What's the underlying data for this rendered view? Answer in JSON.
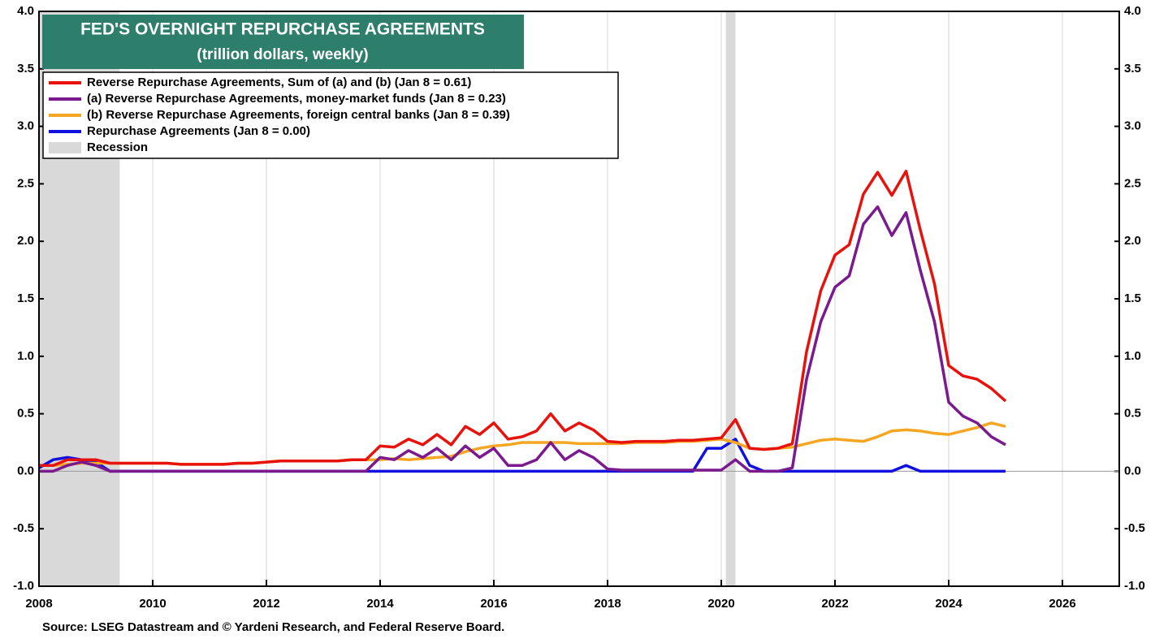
{
  "chart_data": {
    "type": "line",
    "title": "FED'S OVERNIGHT REPURCHASE AGREEMENTS",
    "subtitle": "(trillion dollars, weekly)",
    "source": "Source: LSEG Datastream and © Yardeni Research, and Federal Reserve Board.",
    "recession_label": "Recession",
    "recession_color": "#d9d9d9",
    "recessions": [
      [
        2007.92,
        2009.42
      ],
      [
        2020.08,
        2020.25
      ]
    ],
    "x": [
      2008,
      2008.25,
      2008.5,
      2008.75,
      2009,
      2009.25,
      2009.5,
      2009.75,
      2010,
      2010.25,
      2010.5,
      2010.75,
      2011,
      2011.25,
      2011.5,
      2011.75,
      2012,
      2012.25,
      2012.5,
      2012.75,
      2013,
      2013.25,
      2013.5,
      2013.75,
      2014,
      2014.25,
      2014.5,
      2014.75,
      2015,
      2015.25,
      2015.5,
      2015.75,
      2016,
      2016.25,
      2016.5,
      2016.75,
      2017,
      2017.25,
      2017.5,
      2017.75,
      2018,
      2018.25,
      2018.5,
      2018.75,
      2019,
      2019.25,
      2019.5,
      2019.75,
      2020,
      2020.25,
      2020.5,
      2020.75,
      2021,
      2021.25,
      2021.5,
      2021.75,
      2022,
      2022.25,
      2022.5,
      2022.75,
      2023,
      2023.25,
      2023.5,
      2023.75,
      2024,
      2024.25,
      2024.5,
      2024.75,
      2025
    ],
    "series": [
      {
        "name": "Reverse Repurchase Agreements, Sum of (a) and (b)  (Jan 8 = 0.61)",
        "color": "#e8120c",
        "values": [
          0.05,
          0.05,
          0.1,
          0.1,
          0.1,
          0.07,
          0.07,
          0.07,
          0.07,
          0.07,
          0.06,
          0.06,
          0.06,
          0.06,
          0.07,
          0.07,
          0.08,
          0.09,
          0.09,
          0.09,
          0.09,
          0.09,
          0.1,
          0.1,
          0.22,
          0.21,
          0.28,
          0.23,
          0.32,
          0.23,
          0.39,
          0.32,
          0.42,
          0.28,
          0.3,
          0.35,
          0.5,
          0.35,
          0.42,
          0.36,
          0.26,
          0.25,
          0.26,
          0.26,
          0.26,
          0.27,
          0.27,
          0.28,
          0.29,
          0.45,
          0.2,
          0.19,
          0.2,
          0.24,
          1.04,
          1.57,
          1.88,
          1.97,
          2.41,
          2.6,
          2.4,
          2.61,
          2.1,
          1.63,
          0.92,
          0.83,
          0.8,
          0.72,
          0.61
        ]
      },
      {
        "name": "(a) Reverse Repurchase Agreements, money-market funds (Jan 8 = 0.23)",
        "color": "#7b1a8e",
        "values": [
          0,
          0,
          0.05,
          0.08,
          0.05,
          0,
          0,
          0,
          0,
          0,
          0,
          0,
          0,
          0,
          0,
          0,
          0,
          0,
          0,
          0,
          0,
          0,
          0,
          0,
          0.12,
          0.1,
          0.18,
          0.12,
          0.2,
          0.1,
          0.22,
          0.12,
          0.2,
          0.05,
          0.05,
          0.1,
          0.25,
          0.1,
          0.18,
          0.12,
          0.02,
          0.01,
          0.01,
          0.01,
          0.01,
          0.01,
          0.01,
          0.01,
          0.01,
          0.1,
          0,
          0,
          0,
          0.03,
          0.8,
          1.3,
          1.6,
          1.7,
          2.15,
          2.3,
          2.05,
          2.25,
          1.75,
          1.3,
          0.6,
          0.48,
          0.42,
          0.3,
          0.23
        ]
      },
      {
        "name": "(b) Reverse Repurchase Agreements, foreign central banks (Jan 8 = 0.39)",
        "color": "#f5a623",
        "values": [
          0.05,
          0.05,
          0.06,
          0.07,
          0.07,
          0.07,
          0.07,
          0.07,
          0.07,
          0.07,
          0.06,
          0.06,
          0.06,
          0.06,
          0.07,
          0.07,
          0.08,
          0.09,
          0.09,
          0.09,
          0.09,
          0.09,
          0.1,
          0.1,
          0.1,
          0.11,
          0.1,
          0.11,
          0.12,
          0.13,
          0.17,
          0.2,
          0.22,
          0.23,
          0.25,
          0.25,
          0.25,
          0.25,
          0.24,
          0.24,
          0.24,
          0.24,
          0.25,
          0.25,
          0.25,
          0.26,
          0.26,
          0.27,
          0.28,
          0.25,
          0.2,
          0.19,
          0.2,
          0.21,
          0.24,
          0.27,
          0.28,
          0.27,
          0.26,
          0.3,
          0.35,
          0.36,
          0.35,
          0.33,
          0.32,
          0.35,
          0.38,
          0.42,
          0.39
        ]
      },
      {
        "name": "Repurchase Agreements  (Jan 8 = 0.00)",
        "color": "#1010e0",
        "values": [
          0.03,
          0.1,
          0.12,
          0.1,
          0.08,
          0,
          0,
          0,
          0,
          0,
          0,
          0,
          0,
          0,
          0,
          0,
          0,
          0,
          0,
          0,
          0,
          0,
          0,
          0,
          0,
          0,
          0,
          0,
          0,
          0,
          0,
          0,
          0,
          0,
          0,
          0,
          0,
          0,
          0,
          0,
          0,
          0,
          0,
          0,
          0,
          0,
          0,
          0.2,
          0.2,
          0.28,
          0.05,
          0,
          0,
          0,
          0,
          0,
          0,
          0,
          0,
          0,
          0,
          0.05,
          0,
          0,
          0,
          0,
          0,
          0,
          0
        ]
      }
    ],
    "xlim": [
      2008,
      2027
    ],
    "ylim": [
      -1.0,
      4.0
    ],
    "xticks": [
      2008,
      2010,
      2012,
      2014,
      2016,
      2018,
      2020,
      2022,
      2024,
      2026
    ],
    "yticks": [
      {
        "value": -1.0,
        "label": "-1.0"
      },
      -0.5,
      {
        "value": 0,
        "label": "0.0"
      },
      0.5,
      {
        "value": 1.0,
        "label": "1.0"
      },
      1.5,
      {
        "value": 2.0,
        "label": "2.0"
      },
      2.5,
      {
        "value": 3.0,
        "label": "3.0"
      },
      3.5,
      {
        "value": 4.0,
        "label": "4.0"
      }
    ],
    "grid": true
  }
}
